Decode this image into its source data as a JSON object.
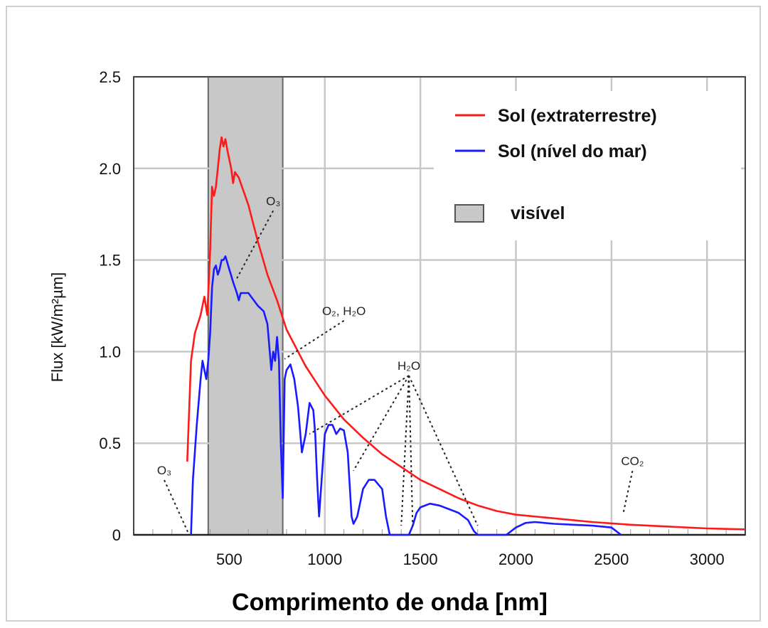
{
  "chart_data": {
    "type": "line",
    "xlabel": "Comprimento de onda [nm]",
    "ylabel": "Flux  [kW/m²µm]",
    "xlim": [
      0,
      3200
    ],
    "ylim": [
      0,
      2.5
    ],
    "x_ticks": [
      500,
      1000,
      1500,
      2000,
      2500,
      3000
    ],
    "x_tick_labels": [
      "500",
      "1000",
      "1500",
      "2000",
      "2500",
      "3000"
    ],
    "y_ticks": [
      0,
      0.5,
      1.0,
      1.5,
      2.0,
      2.5
    ],
    "y_tick_labels": [
      "0",
      "0.5",
      "1.0",
      "1.5",
      "2.0",
      "2.5"
    ],
    "grid": true,
    "legend_position": "top-right",
    "visible_band": {
      "label": "visível",
      "from": 390,
      "to": 780,
      "color": "#c8c8c8"
    },
    "series": [
      {
        "name": "Sol (extraterrestre)",
        "color": "#ff1a1a",
        "points": [
          [
            280,
            0.4
          ],
          [
            300,
            0.95
          ],
          [
            320,
            1.1
          ],
          [
            350,
            1.2
          ],
          [
            370,
            1.3
          ],
          [
            385,
            1.2
          ],
          [
            400,
            1.55
          ],
          [
            410,
            1.9
          ],
          [
            420,
            1.85
          ],
          [
            430,
            1.9
          ],
          [
            440,
            2.0
          ],
          [
            450,
            2.1
          ],
          [
            460,
            2.17
          ],
          [
            470,
            2.12
          ],
          [
            480,
            2.16
          ],
          [
            490,
            2.1
          ],
          [
            500,
            2.05
          ],
          [
            510,
            2.0
          ],
          [
            520,
            1.92
          ],
          [
            530,
            1.98
          ],
          [
            550,
            1.95
          ],
          [
            600,
            1.8
          ],
          [
            650,
            1.6
          ],
          [
            700,
            1.42
          ],
          [
            750,
            1.28
          ],
          [
            800,
            1.12
          ],
          [
            850,
            1.02
          ],
          [
            900,
            0.92
          ],
          [
            950,
            0.84
          ],
          [
            1000,
            0.76
          ],
          [
            1100,
            0.63
          ],
          [
            1200,
            0.53
          ],
          [
            1300,
            0.44
          ],
          [
            1400,
            0.37
          ],
          [
            1500,
            0.3
          ],
          [
            1600,
            0.25
          ],
          [
            1700,
            0.2
          ],
          [
            1800,
            0.16
          ],
          [
            1900,
            0.13
          ],
          [
            2000,
            0.11
          ],
          [
            2200,
            0.09
          ],
          [
            2400,
            0.07
          ],
          [
            2600,
            0.055
          ],
          [
            2800,
            0.045
          ],
          [
            3000,
            0.035
          ],
          [
            3200,
            0.03
          ]
        ]
      },
      {
        "name": "Sol (nível do mar)",
        "color": "#1a1aff",
        "points": [
          [
            300,
            0.0
          ],
          [
            310,
            0.3
          ],
          [
            330,
            0.6
          ],
          [
            350,
            0.85
          ],
          [
            360,
            0.95
          ],
          [
            370,
            0.9
          ],
          [
            380,
            0.85
          ],
          [
            390,
            0.95
          ],
          [
            400,
            1.1
          ],
          [
            410,
            1.35
          ],
          [
            420,
            1.45
          ],
          [
            430,
            1.47
          ],
          [
            440,
            1.42
          ],
          [
            450,
            1.45
          ],
          [
            460,
            1.5
          ],
          [
            470,
            1.5
          ],
          [
            480,
            1.52
          ],
          [
            500,
            1.45
          ],
          [
            520,
            1.38
          ],
          [
            540,
            1.32
          ],
          [
            550,
            1.28
          ],
          [
            560,
            1.32
          ],
          [
            600,
            1.32
          ],
          [
            650,
            1.25
          ],
          [
            680,
            1.22
          ],
          [
            700,
            1.15
          ],
          [
            720,
            0.9
          ],
          [
            730,
            1.0
          ],
          [
            740,
            0.95
          ],
          [
            750,
            1.08
          ],
          [
            760,
            0.95
          ],
          [
            770,
            0.5
          ],
          [
            780,
            0.2
          ],
          [
            790,
            0.85
          ],
          [
            800,
            0.9
          ],
          [
            820,
            0.93
          ],
          [
            840,
            0.85
          ],
          [
            860,
            0.7
          ],
          [
            880,
            0.45
          ],
          [
            900,
            0.55
          ],
          [
            920,
            0.72
          ],
          [
            940,
            0.68
          ],
          [
            950,
            0.55
          ],
          [
            960,
            0.3
          ],
          [
            970,
            0.1
          ],
          [
            990,
            0.4
          ],
          [
            1000,
            0.55
          ],
          [
            1020,
            0.6
          ],
          [
            1040,
            0.6
          ],
          [
            1060,
            0.55
          ],
          [
            1080,
            0.58
          ],
          [
            1100,
            0.57
          ],
          [
            1120,
            0.45
          ],
          [
            1140,
            0.1
          ],
          [
            1150,
            0.06
          ],
          [
            1170,
            0.1
          ],
          [
            1200,
            0.25
          ],
          [
            1230,
            0.3
          ],
          [
            1260,
            0.3
          ],
          [
            1300,
            0.25
          ],
          [
            1320,
            0.1
          ],
          [
            1340,
            0.0
          ],
          [
            1440,
            0.0
          ],
          [
            1460,
            0.05
          ],
          [
            1480,
            0.12
          ],
          [
            1500,
            0.15
          ],
          [
            1550,
            0.17
          ],
          [
            1600,
            0.16
          ],
          [
            1650,
            0.14
          ],
          [
            1700,
            0.12
          ],
          [
            1750,
            0.08
          ],
          [
            1780,
            0.02
          ],
          [
            1800,
            0.0
          ],
          [
            1950,
            0.0
          ],
          [
            2000,
            0.04
          ],
          [
            2050,
            0.065
          ],
          [
            2100,
            0.07
          ],
          [
            2200,
            0.06
          ],
          [
            2300,
            0.055
          ],
          [
            2400,
            0.05
          ],
          [
            2500,
            0.04
          ],
          [
            2550,
            0.0
          ]
        ]
      }
    ],
    "annotations": [
      {
        "text": "O₃",
        "at": [
          730,
          1.8
        ],
        "to": [
          [
            540,
            1.4
          ]
        ]
      },
      {
        "text": "O₂, H₂O",
        "at": [
          1100,
          1.2
        ],
        "to": [
          [
            790,
            0.96
          ]
        ]
      },
      {
        "text": "H₂O",
        "at": [
          1440,
          0.9
        ],
        "to": [
          [
            920,
            0.55
          ],
          [
            1150,
            0.35
          ],
          [
            1400,
            0.05
          ],
          [
            1460,
            0.05
          ],
          [
            1800,
            0.05
          ]
        ]
      },
      {
        "text": "CO₂",
        "at": [
          2610,
          0.38
        ],
        "to": [
          [
            2560,
            0.11
          ]
        ]
      },
      {
        "text": "O₃",
        "at": [
          160,
          0.33
        ],
        "to": [
          [
            290,
            0.0
          ]
        ]
      }
    ]
  }
}
